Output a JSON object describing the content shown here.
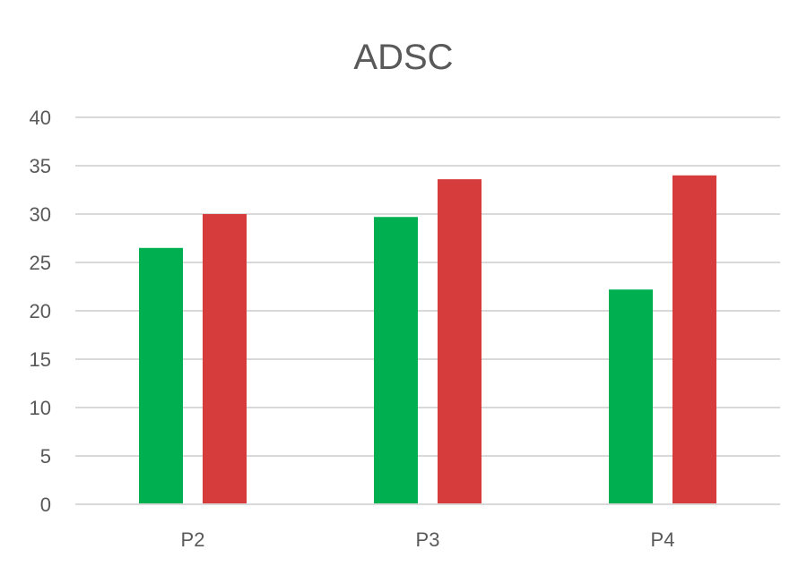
{
  "chart_data": {
    "type": "bar",
    "title": "ADSC",
    "categories": [
      "P2",
      "P3",
      "P4"
    ],
    "series": [
      {
        "values": [
          26.5,
          29.7,
          22.2
        ],
        "color": "#00b050"
      },
      {
        "values": [
          30.0,
          33.6,
          34.0
        ],
        "color": "#d63c3c"
      }
    ],
    "ylim": [
      0,
      40
    ],
    "yticks": [
      "0",
      "5",
      "10",
      "15",
      "20",
      "25",
      "30",
      "35",
      "40"
    ],
    "grid": true,
    "legend": "none",
    "xlabel": "",
    "ylabel": ""
  }
}
